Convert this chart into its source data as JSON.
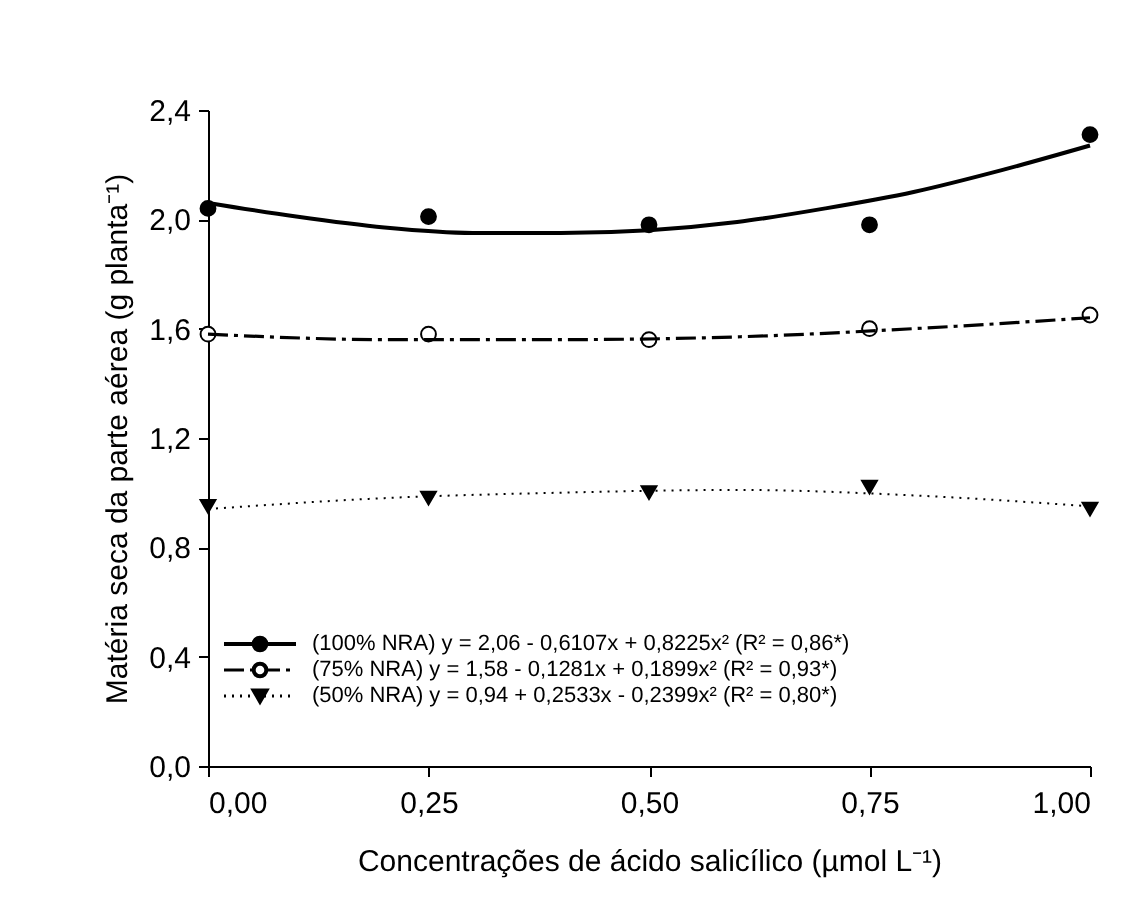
{
  "chart_data": {
    "type": "scatter",
    "xlabel": "Concentrações de ácido salicílico (µmol L⁻¹)",
    "ylabel": "Matéria seca da parte aérea (g planta⁻¹)",
    "x": [
      0,
      0.25,
      0.5,
      0.75,
      1.0
    ],
    "series": [
      {
        "color": "#000000",
        "marker": "circle",
        "values": [
          2.04,
          2.01,
          1.98,
          1.98,
          2.31
        ]
      },
      {
        "color": "#ffffff",
        "marker": "circle",
        "values": [
          1.58,
          1.58,
          1.56,
          1.6,
          1.65
        ]
      },
      {
        "color": "#000000",
        "marker": "triangle",
        "values": [
          0.95,
          0.98,
          1.0,
          1.02,
          0.94
        ]
      },
      {
        "type": "line",
        "name": "(100% NRA) y = 2,06 - 0,6107x + 0,8225x² (R² = 0,86*)",
        "color": "#000000",
        "line_style": "solid",
        "x": [
          0,
          0.1,
          0.2,
          0.3,
          0.4,
          0.5,
          0.6,
          0.7,
          0.8,
          0.9,
          1.0
        ],
        "values": [
          2.06,
          2.01,
          1.97,
          1.95,
          1.95,
          1.96,
          1.99,
          2.04,
          2.1,
          2.18,
          2.27
        ]
      },
      {
        "type": "line",
        "name": "(75% NRA) y = 1,58 - 0,1281x + 0,1899x² (R² = 0,93*)",
        "color": "#000000",
        "line_style": "dashed",
        "x": [
          0,
          0.2,
          0.4,
          0.6,
          0.8,
          1.0
        ],
        "values": [
          1.58,
          1.56,
          1.56,
          1.57,
          1.6,
          1.64
        ]
      },
      {
        "type": "line",
        "name": "(50% NRA) y = 0,94 + 0,2533x - 0,2399x² (R² = 0,80*)",
        "color": "#000000",
        "line_style": "dotted",
        "x": [
          0,
          0.2,
          0.4,
          0.6,
          0.8,
          1.0
        ],
        "values": [
          0.94,
          0.98,
          1.0,
          1.01,
          0.99,
          0.95
        ]
      }
    ],
    "xlim": [
      0,
      1.0
    ],
    "xticks": [
      {
        "value": 0,
        "label": "0,00"
      },
      {
        "value": 0.25,
        "label": "0,25"
      },
      {
        "value": 0.5,
        "label": "0,50"
      },
      {
        "value": 0.75,
        "label": "0,75"
      },
      {
        "value": 1.0,
        "label": "1,00"
      }
    ],
    "ylim": [
      0,
      2.4
    ],
    "yticks": [
      {
        "value": 0,
        "label": "0,0"
      },
      {
        "value": 0.4,
        "label": "0,4"
      },
      {
        "value": 0.8,
        "label": "0,8"
      },
      {
        "value": 1.2,
        "label": "1,2"
      },
      {
        "value": 1.6,
        "label": "1,6"
      },
      {
        "value": 2.0,
        "label": "2,0"
      },
      {
        "value": 2.4,
        "label": "2,4"
      }
    ],
    "grid": false,
    "legend": "bottom left"
  }
}
